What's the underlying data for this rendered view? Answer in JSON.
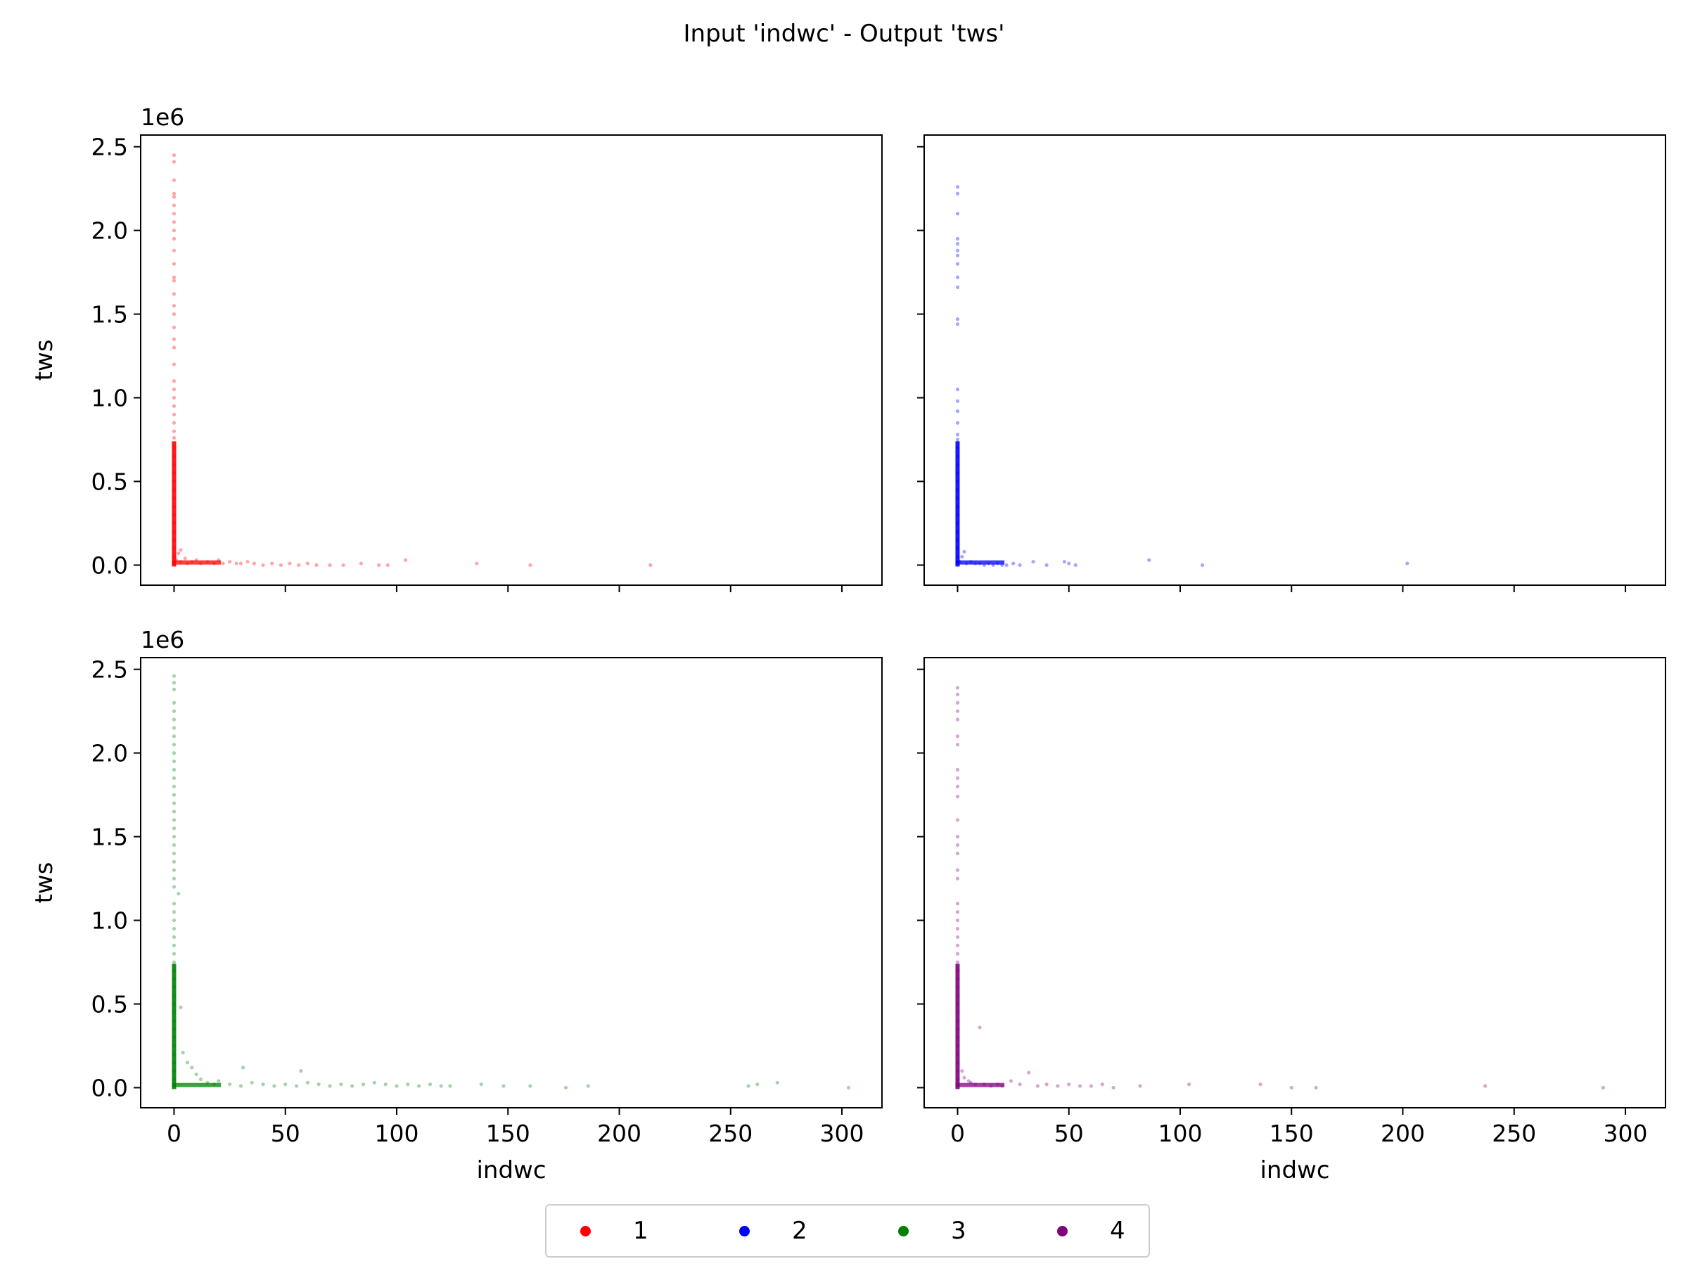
{
  "chart_data": {
    "type": "scatter",
    "title": "Input 'indwc' - Output 'tws'",
    "xlabel": "indwc",
    "ylabel": "tws",
    "y_scale_label": "1e6",
    "xlim": [
      -15,
      318
    ],
    "ylim": [
      -0.12,
      2.57
    ],
    "x_ticks": [
      0,
      50,
      100,
      150,
      200,
      250,
      300
    ],
    "y_ticks": [
      0.0,
      0.5,
      1.0,
      1.5,
      2.0,
      2.5
    ],
    "y_tick_labels": [
      "0.0",
      "0.5",
      "1.0",
      "1.5",
      "2.0",
      "2.5"
    ],
    "grid": false,
    "shared_axes": true,
    "legend_position": "bottom-center",
    "series": [
      {
        "name": "1",
        "color": "#ff0000",
        "panel": 0,
        "points": [
          [
            0,
            2.45
          ],
          [
            0,
            2.41
          ],
          [
            0,
            2.3
          ],
          [
            0,
            2.22
          ],
          [
            0,
            2.2
          ],
          [
            0,
            2.15
          ],
          [
            0,
            2.1
          ],
          [
            0,
            2.05
          ],
          [
            0,
            2.0
          ],
          [
            0,
            1.95
          ],
          [
            0,
            1.88
          ],
          [
            0,
            1.8
          ],
          [
            0,
            1.72
          ],
          [
            0,
            1.7
          ],
          [
            0,
            1.62
          ],
          [
            0,
            1.55
          ],
          [
            0,
            1.5
          ],
          [
            0,
            1.42
          ],
          [
            0,
            1.35
          ],
          [
            0,
            1.3
          ],
          [
            0,
            1.2
          ],
          [
            0,
            1.1
          ],
          [
            0,
            1.05
          ],
          [
            0,
            1.0
          ],
          [
            0,
            0.95
          ],
          [
            0,
            0.9
          ],
          [
            0,
            0.85
          ],
          [
            0,
            0.8
          ],
          [
            0,
            0.76
          ],
          [
            0,
            0.7
          ],
          [
            0,
            0.65
          ],
          [
            0,
            0.6
          ],
          [
            0,
            0.55
          ],
          [
            0,
            0.5
          ],
          [
            0,
            0.45
          ],
          [
            0,
            0.4
          ],
          [
            0,
            0.35
          ],
          [
            0,
            0.3
          ],
          [
            0,
            0.25
          ],
          [
            0,
            0.2
          ],
          [
            0,
            0.15
          ],
          [
            0,
            0.1
          ],
          [
            0,
            0.05
          ],
          [
            1,
            0.03
          ],
          [
            2,
            0.07
          ],
          [
            3,
            0.09
          ],
          [
            3,
            0.02
          ],
          [
            5,
            0.04
          ],
          [
            6,
            0.01
          ],
          [
            8,
            0.02
          ],
          [
            10,
            0.03
          ],
          [
            12,
            0.01
          ],
          [
            15,
            0.02
          ],
          [
            18,
            0.01
          ],
          [
            20,
            0.03
          ],
          [
            22,
            0.01
          ],
          [
            25,
            0.02
          ],
          [
            28,
            0.01
          ],
          [
            30,
            0.01
          ],
          [
            33,
            0.02
          ],
          [
            36,
            0.01
          ],
          [
            40,
            0.0
          ],
          [
            44,
            0.01
          ],
          [
            48,
            0.0
          ],
          [
            52,
            0.01
          ],
          [
            56,
            0.0
          ],
          [
            60,
            0.01
          ],
          [
            64,
            0.0
          ],
          [
            70,
            0.0
          ],
          [
            76,
            0.0
          ],
          [
            84,
            0.01
          ],
          [
            92,
            0.0
          ],
          [
            96,
            0.0
          ],
          [
            104,
            0.03
          ],
          [
            136,
            0.01
          ],
          [
            160,
            0.0
          ],
          [
            214,
            0.0
          ]
        ]
      },
      {
        "name": "2",
        "color": "#0000ff",
        "panel": 1,
        "points": [
          [
            0,
            2.26
          ],
          [
            0,
            2.22
          ],
          [
            0,
            2.1
          ],
          [
            0,
            1.95
          ],
          [
            0,
            1.92
          ],
          [
            0,
            1.88
          ],
          [
            0,
            1.85
          ],
          [
            0,
            1.8
          ],
          [
            0,
            1.72
          ],
          [
            0,
            1.66
          ],
          [
            0,
            1.47
          ],
          [
            0,
            1.44
          ],
          [
            0,
            1.05
          ],
          [
            0,
            0.98
          ],
          [
            0,
            0.92
          ],
          [
            0,
            0.85
          ],
          [
            0,
            0.78
          ],
          [
            0,
            0.75
          ],
          [
            0,
            0.7
          ],
          [
            0,
            0.65
          ],
          [
            0,
            0.6
          ],
          [
            0,
            0.55
          ],
          [
            0,
            0.5
          ],
          [
            0,
            0.45
          ],
          [
            0,
            0.4
          ],
          [
            0,
            0.35
          ],
          [
            0,
            0.3
          ],
          [
            0,
            0.25
          ],
          [
            0,
            0.2
          ],
          [
            0,
            0.15
          ],
          [
            0,
            0.1
          ],
          [
            0,
            0.05
          ],
          [
            1,
            0.02
          ],
          [
            2,
            0.05
          ],
          [
            3,
            0.08
          ],
          [
            4,
            0.01
          ],
          [
            6,
            0.02
          ],
          [
            8,
            0.01
          ],
          [
            10,
            0.01
          ],
          [
            12,
            0.0
          ],
          [
            14,
            0.01
          ],
          [
            16,
            0.0
          ],
          [
            18,
            0.01
          ],
          [
            20,
            0.0
          ],
          [
            22,
            0.0
          ],
          [
            25,
            0.01
          ],
          [
            28,
            0.0
          ],
          [
            34,
            0.02
          ],
          [
            40,
            0.0
          ],
          [
            48,
            0.02
          ],
          [
            50,
            0.01
          ],
          [
            53,
            0.0
          ],
          [
            86,
            0.03
          ],
          [
            110,
            0.0
          ],
          [
            202,
            0.01
          ]
        ]
      },
      {
        "name": "3",
        "color": "#008000",
        "panel": 2,
        "points": [
          [
            0,
            2.46
          ],
          [
            0,
            2.42
          ],
          [
            0,
            2.38
          ],
          [
            0,
            2.3
          ],
          [
            0,
            2.25
          ],
          [
            0,
            2.2
          ],
          [
            0,
            2.15
          ],
          [
            0,
            2.1
          ],
          [
            0,
            2.05
          ],
          [
            0,
            2.0
          ],
          [
            0,
            1.95
          ],
          [
            0,
            1.9
          ],
          [
            0,
            1.85
          ],
          [
            0,
            1.8
          ],
          [
            0,
            1.75
          ],
          [
            0,
            1.7
          ],
          [
            0,
            1.65
          ],
          [
            0,
            1.6
          ],
          [
            0,
            1.55
          ],
          [
            0,
            1.5
          ],
          [
            0,
            1.45
          ],
          [
            0,
            1.4
          ],
          [
            0,
            1.35
          ],
          [
            0,
            1.3
          ],
          [
            0,
            1.25
          ],
          [
            0,
            1.2
          ],
          [
            0,
            1.1
          ],
          [
            0,
            1.05
          ],
          [
            0,
            1.0
          ],
          [
            0,
            0.95
          ],
          [
            0,
            0.9
          ],
          [
            0,
            0.85
          ],
          [
            0,
            0.8
          ],
          [
            0,
            0.75
          ],
          [
            0,
            0.7
          ],
          [
            0,
            0.65
          ],
          [
            0,
            0.6
          ],
          [
            0,
            0.55
          ],
          [
            0,
            0.5
          ],
          [
            0,
            0.45
          ],
          [
            0,
            0.4
          ],
          [
            0,
            0.35
          ],
          [
            0,
            0.3
          ],
          [
            0,
            0.25
          ],
          [
            0,
            0.2
          ],
          [
            0,
            0.15
          ],
          [
            0,
            0.1
          ],
          [
            0,
            0.05
          ],
          [
            2,
            1.16
          ],
          [
            3,
            0.48
          ],
          [
            4,
            0.21
          ],
          [
            6,
            0.15
          ],
          [
            8,
            0.12
          ],
          [
            10,
            0.08
          ],
          [
            12,
            0.05
          ],
          [
            15,
            0.03
          ],
          [
            18,
            0.02
          ],
          [
            20,
            0.04
          ],
          [
            25,
            0.02
          ],
          [
            30,
            0.01
          ],
          [
            31,
            0.12
          ],
          [
            35,
            0.03
          ],
          [
            40,
            0.02
          ],
          [
            45,
            0.01
          ],
          [
            50,
            0.02
          ],
          [
            55,
            0.01
          ],
          [
            57,
            0.1
          ],
          [
            60,
            0.03
          ],
          [
            65,
            0.02
          ],
          [
            70,
            0.01
          ],
          [
            75,
            0.02
          ],
          [
            80,
            0.01
          ],
          [
            85,
            0.02
          ],
          [
            90,
            0.03
          ],
          [
            95,
            0.02
          ],
          [
            100,
            0.01
          ],
          [
            105,
            0.02
          ],
          [
            110,
            0.01
          ],
          [
            115,
            0.02
          ],
          [
            120,
            0.01
          ],
          [
            124,
            0.01
          ],
          [
            138,
            0.02
          ],
          [
            148,
            0.01
          ],
          [
            160,
            0.01
          ],
          [
            176,
            0.0
          ],
          [
            186,
            0.01
          ],
          [
            258,
            0.01
          ],
          [
            262,
            0.02
          ],
          [
            271,
            0.03
          ],
          [
            303,
            0.0
          ]
        ]
      },
      {
        "name": "4",
        "color": "#800080",
        "panel": 3,
        "points": [
          [
            0,
            2.39
          ],
          [
            0,
            2.35
          ],
          [
            0,
            2.3
          ],
          [
            0,
            2.25
          ],
          [
            0,
            2.2
          ],
          [
            0,
            2.1
          ],
          [
            0,
            2.05
          ],
          [
            0,
            1.9
          ],
          [
            0,
            1.85
          ],
          [
            0,
            1.8
          ],
          [
            0,
            1.74
          ],
          [
            0,
            1.6
          ],
          [
            0,
            1.5
          ],
          [
            0,
            1.45
          ],
          [
            0,
            1.4
          ],
          [
            0,
            1.3
          ],
          [
            0,
            1.25
          ],
          [
            0,
            1.1
          ],
          [
            0,
            1.05
          ],
          [
            0,
            1.0
          ],
          [
            0,
            0.95
          ],
          [
            0,
            0.9
          ],
          [
            0,
            0.85
          ],
          [
            0,
            0.8
          ],
          [
            0,
            0.75
          ],
          [
            0,
            0.7
          ],
          [
            0,
            0.65
          ],
          [
            0,
            0.6
          ],
          [
            0,
            0.55
          ],
          [
            0,
            0.5
          ],
          [
            0,
            0.45
          ],
          [
            0,
            0.4
          ],
          [
            0,
            0.35
          ],
          [
            0,
            0.3
          ],
          [
            0,
            0.25
          ],
          [
            0,
            0.2
          ],
          [
            0,
            0.15
          ],
          [
            0,
            0.1
          ],
          [
            0,
            0.05
          ],
          [
            2,
            0.1
          ],
          [
            3,
            0.06
          ],
          [
            5,
            0.04
          ],
          [
            6,
            0.03
          ],
          [
            8,
            0.02
          ],
          [
            10,
            0.36
          ],
          [
            12,
            0.02
          ],
          [
            15,
            0.01
          ],
          [
            18,
            0.02
          ],
          [
            20,
            0.01
          ],
          [
            24,
            0.04
          ],
          [
            28,
            0.02
          ],
          [
            32,
            0.09
          ],
          [
            36,
            0.01
          ],
          [
            40,
            0.02
          ],
          [
            45,
            0.01
          ],
          [
            50,
            0.02
          ],
          [
            55,
            0.01
          ],
          [
            60,
            0.01
          ],
          [
            65,
            0.02
          ],
          [
            70,
            0.0
          ],
          [
            82,
            0.01
          ],
          [
            104,
            0.02
          ],
          [
            136,
            0.02
          ],
          [
            150,
            0.0
          ],
          [
            161,
            0.0
          ],
          [
            237,
            0.01
          ],
          [
            290,
            0.0
          ]
        ]
      }
    ]
  }
}
